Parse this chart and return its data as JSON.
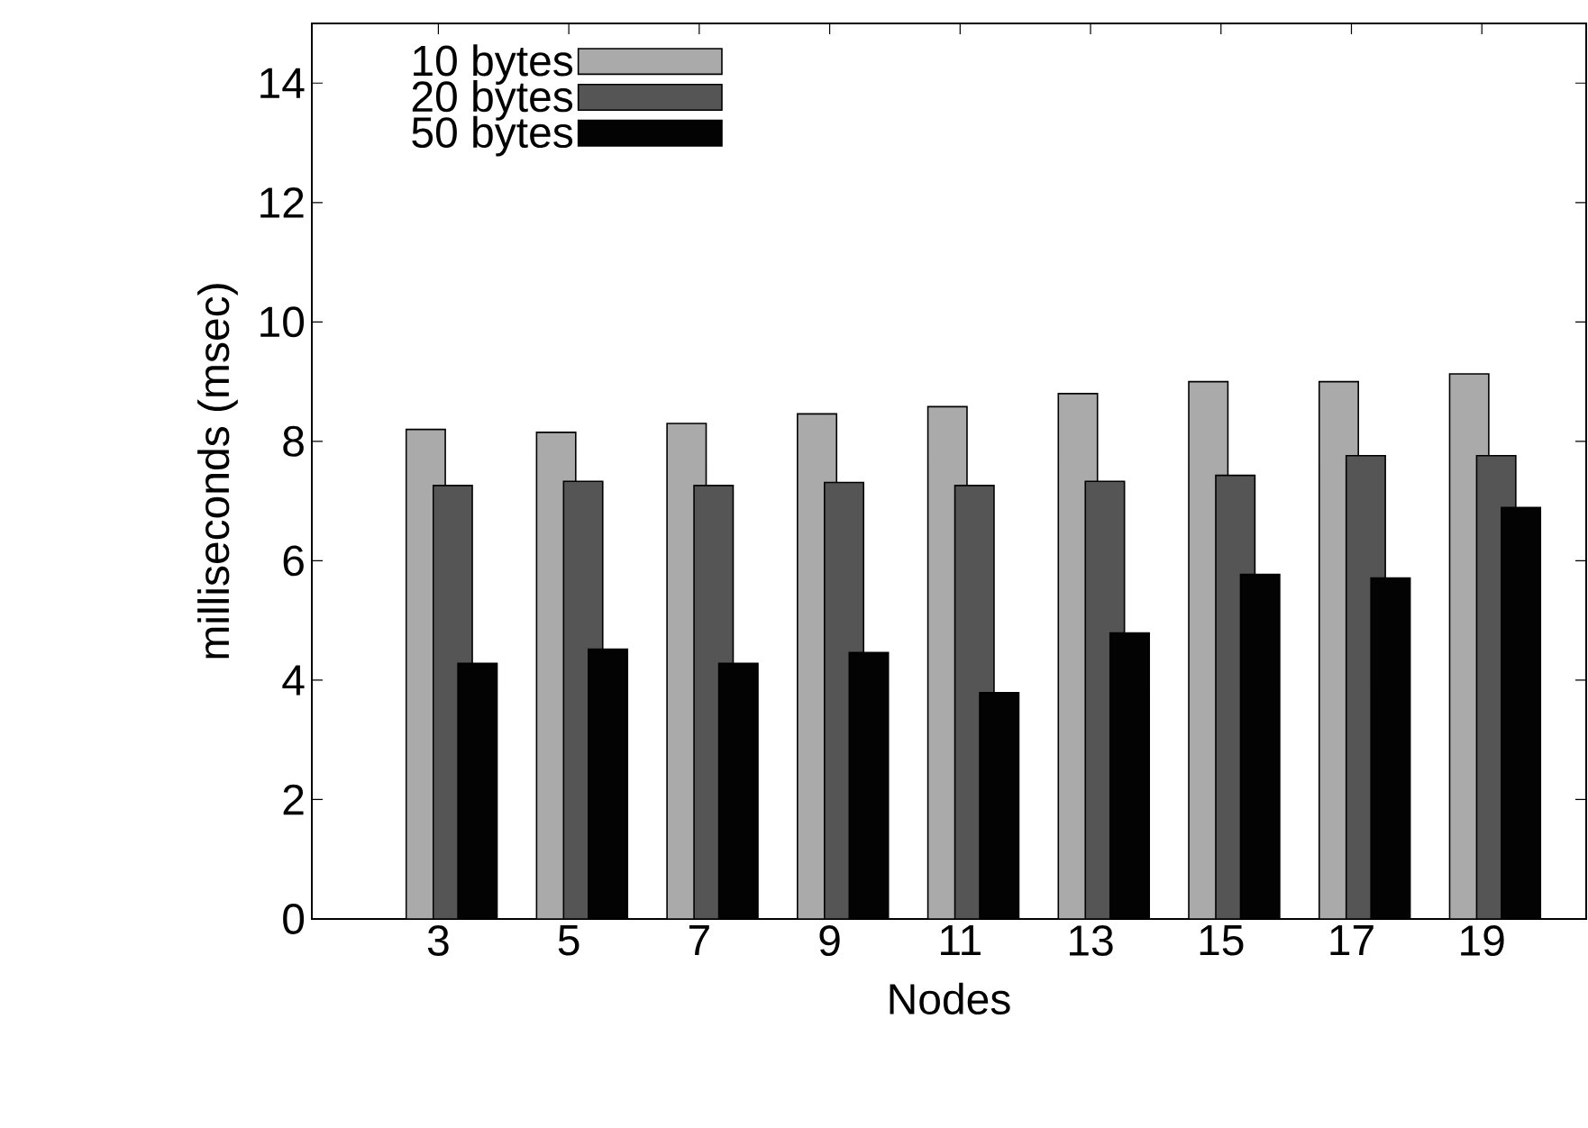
{
  "chart_data": {
    "type": "bar",
    "xlabel": "Nodes",
    "ylabel": "milliseconds (msec)",
    "categories": [
      "3",
      "5",
      "7",
      "9",
      "11",
      "13",
      "15",
      "17",
      "19"
    ],
    "series": [
      {
        "name": "10 bytes",
        "color": "#aaaaaa",
        "values": [
          8.2,
          8.15,
          8.3,
          8.46,
          8.58,
          8.8,
          9.0,
          9.0,
          9.13
        ]
      },
      {
        "name": "20 bytes",
        "color": "#555555",
        "values": [
          7.26,
          7.33,
          7.26,
          7.31,
          7.26,
          7.33,
          7.43,
          7.76,
          7.76
        ]
      },
      {
        "name": "50 bytes",
        "color": "#030303",
        "values": [
          4.28,
          4.52,
          4.28,
          4.46,
          3.79,
          4.79,
          5.77,
          5.71,
          6.89
        ]
      }
    ],
    "ylim": [
      0,
      15
    ],
    "yticks": [
      0,
      2,
      4,
      6,
      8,
      10,
      12,
      14
    ],
    "grid": false,
    "legend": "top left"
  }
}
